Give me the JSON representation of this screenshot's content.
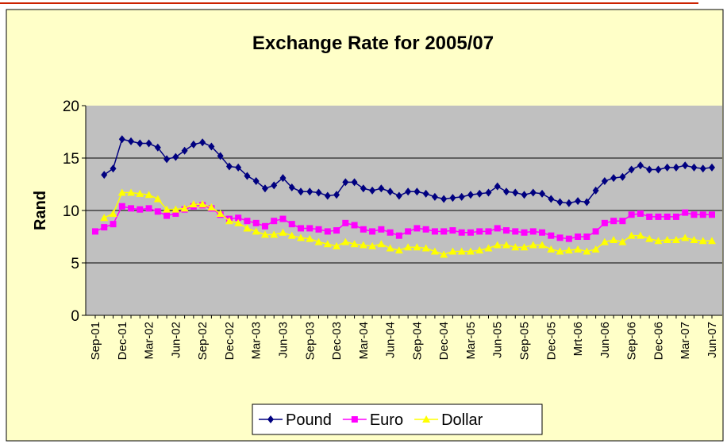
{
  "chart_data": {
    "type": "line",
    "title": "Exchange Rate for 2005/07",
    "y_label": "Rand",
    "categories": [
      "Sep-01",
      null,
      null,
      "Dec-01",
      null,
      null,
      "Mar-02",
      null,
      null,
      "Jun-02",
      null,
      null,
      "Sep-02",
      null,
      null,
      "Dec-02",
      null,
      null,
      "Mar-03",
      null,
      null,
      "Jun-03",
      null,
      null,
      "Sep-03",
      null,
      null,
      "Dec-03",
      null,
      null,
      "Mar-04",
      null,
      null,
      "Jun-04",
      null,
      null,
      "Sep-04",
      null,
      null,
      "Dec-04",
      null,
      null,
      "Mar-05",
      null,
      null,
      "Jun-05",
      null,
      null,
      "Sep-05",
      null,
      null,
      "Dec-05",
      null,
      null,
      "Mrt-06",
      null,
      null,
      "Jun-06",
      null,
      null,
      "Sep-06",
      null,
      null,
      "Dec-06",
      null,
      null,
      "Mar-07",
      null,
      null,
      "Jun-07"
    ],
    "series": [
      {
        "name": "Pound",
        "color": "#000080",
        "marker": "diamond",
        "values": [
          null,
          13.4,
          14.0,
          16.8,
          16.6,
          16.4,
          16.4,
          16.0,
          14.9,
          15.1,
          15.7,
          16.3,
          16.5,
          16.1,
          15.2,
          14.2,
          14.1,
          13.3,
          12.8,
          12.1,
          12.4,
          13.1,
          12.2,
          11.8,
          11.8,
          11.7,
          11.4,
          11.5,
          12.7,
          12.7,
          12.1,
          11.9,
          12.1,
          11.8,
          11.4,
          11.8,
          11.8,
          11.6,
          11.3,
          11.1,
          11.2,
          11.3,
          11.5,
          11.6,
          11.7,
          12.3,
          11.8,
          11.7,
          11.5,
          11.7,
          11.6,
          11.1,
          10.8,
          10.7,
          10.9,
          10.8,
          11.9,
          12.8,
          13.1,
          13.2,
          13.9,
          14.3,
          13.9,
          13.9,
          14.1,
          14.1,
          14.3,
          14.1,
          14.0,
          14.1
        ]
      },
      {
        "name": "Euro",
        "color": "#ff00ff",
        "marker": "square",
        "values": [
          8.0,
          8.4,
          8.7,
          10.4,
          10.2,
          10.1,
          10.2,
          9.9,
          9.5,
          9.7,
          10.1,
          10.4,
          10.5,
          10.2,
          9.6,
          9.2,
          9.3,
          9.0,
          8.8,
          8.5,
          9.0,
          9.2,
          8.7,
          8.3,
          8.3,
          8.2,
          8.0,
          8.1,
          8.8,
          8.6,
          8.2,
          8.0,
          8.2,
          7.9,
          7.6,
          8.0,
          8.3,
          8.2,
          8.0,
          8.0,
          8.1,
          7.9,
          7.9,
          8.0,
          8.0,
          8.3,
          8.1,
          8.0,
          7.9,
          8.0,
          7.9,
          7.6,
          7.4,
          7.3,
          7.5,
          7.5,
          8.0,
          8.8,
          9.0,
          9.0,
          9.6,
          9.7,
          9.4,
          9.4,
          9.4,
          9.4,
          9.8,
          9.6,
          9.6,
          9.6
        ]
      },
      {
        "name": "Dollar",
        "color": "#ffff00",
        "marker": "triangle",
        "values": [
          null,
          9.3,
          9.7,
          11.7,
          11.7,
          11.6,
          11.5,
          11.1,
          10.1,
          10.1,
          10.2,
          10.6,
          10.6,
          10.3,
          9.7,
          9.0,
          8.8,
          8.3,
          8.0,
          7.7,
          7.7,
          7.9,
          7.6,
          7.4,
          7.3,
          7.0,
          6.8,
          6.6,
          7.0,
          6.8,
          6.7,
          6.6,
          6.8,
          6.4,
          6.2,
          6.5,
          6.5,
          6.4,
          6.1,
          5.8,
          6.1,
          6.1,
          6.1,
          6.2,
          6.4,
          6.7,
          6.7,
          6.5,
          6.5,
          6.7,
          6.7,
          6.3,
          6.1,
          6.2,
          6.3,
          6.1,
          6.3,
          7.0,
          7.2,
          7.0,
          7.6,
          7.6,
          7.3,
          7.1,
          7.2,
          7.2,
          7.4,
          7.2,
          7.1,
          7.1
        ]
      }
    ],
    "ylim": [
      0,
      20
    ],
    "yticks": [
      0,
      5,
      10,
      15,
      20
    ],
    "grid": true,
    "legend": "bottom"
  }
}
